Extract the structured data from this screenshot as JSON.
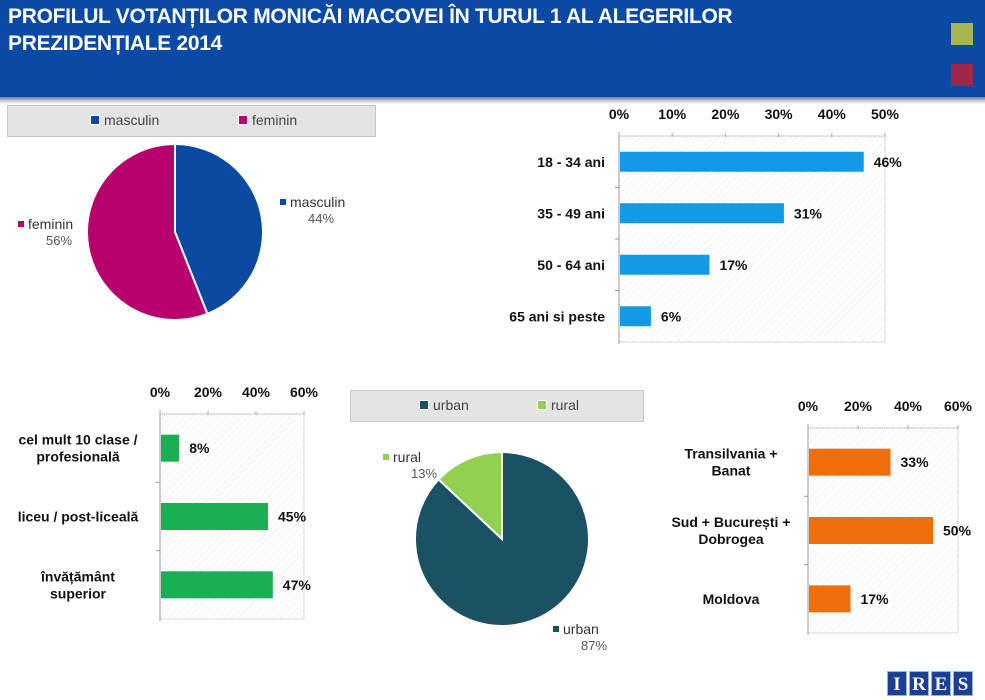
{
  "header": {
    "title_line1": "PROFILUL VOTANȚILOR MONICĂI MACOVEI ÎN TURUL 1 AL ALEGERILOR",
    "title_line2": "PREZIDENȚIALE 2014",
    "accent_squares": [
      "#a7b54c",
      "#a1264c"
    ]
  },
  "logo": {
    "letters": [
      "I",
      "R",
      "E",
      "S"
    ]
  },
  "chart_data": [
    {
      "id": "gender",
      "type": "pie",
      "title": "",
      "legend": [
        "masculin",
        "feminin"
      ],
      "legend_placement": "top",
      "slices": [
        {
          "label": "masculin",
          "value": 44,
          "value_label": "44%",
          "color": "#0a4aa0"
        },
        {
          "label": "feminin",
          "value": 56,
          "value_label": "56%",
          "color": "#b8006f"
        }
      ]
    },
    {
      "id": "age",
      "type": "bar",
      "orientation": "horizontal",
      "title": "",
      "categories": [
        "18 - 34 ani",
        "35 - 49 ani",
        "50 - 64 ani",
        "65 ani si peste"
      ],
      "values": [
        46,
        31,
        17,
        6
      ],
      "value_labels": [
        "46%",
        "31%",
        "17%",
        "6%"
      ],
      "xlim": [
        0,
        50
      ],
      "ticks": [
        0,
        10,
        20,
        30,
        40,
        50
      ],
      "tick_labels": [
        "0%",
        "10%",
        "20%",
        "30%",
        "40%",
        "50%"
      ],
      "axis_position": "top",
      "color": "#149ae5"
    },
    {
      "id": "education",
      "type": "bar",
      "orientation": "horizontal",
      "title": "",
      "categories": [
        [
          "cel mult 10 clase /",
          "profesională"
        ],
        [
          "liceu / post-liceală"
        ],
        [
          "învățământ",
          "superior"
        ]
      ],
      "values": [
        8,
        45,
        47
      ],
      "value_labels": [
        "8%",
        "45%",
        "47%"
      ],
      "xlim": [
        0,
        60
      ],
      "ticks": [
        0,
        20,
        40,
        60
      ],
      "tick_labels": [
        "0%",
        "20%",
        "40%",
        "60%"
      ],
      "axis_position": "top",
      "color": "#1aaf54"
    },
    {
      "id": "residence",
      "type": "pie",
      "title": "",
      "legend": [
        "urban",
        "rural"
      ],
      "legend_placement": "top",
      "slices": [
        {
          "label": "urban",
          "value": 87,
          "value_label": "87%",
          "color": "#1a5263"
        },
        {
          "label": "rural",
          "value": 13,
          "value_label": "13%",
          "color": "#92d050"
        }
      ]
    },
    {
      "id": "region",
      "type": "bar",
      "orientation": "horizontal",
      "title": "",
      "categories": [
        [
          "Transilvania +",
          "Banat"
        ],
        [
          "Sud + București +",
          "Dobrogea"
        ],
        [
          "Moldova"
        ]
      ],
      "values": [
        33,
        50,
        17
      ],
      "value_labels": [
        "33%",
        "50%",
        "17%"
      ],
      "xlim": [
        0,
        60
      ],
      "ticks": [
        0,
        20,
        40,
        60
      ],
      "tick_labels": [
        "0%",
        "20%",
        "40%",
        "60%"
      ],
      "axis_position": "top",
      "color": "#ee6e0a"
    }
  ]
}
